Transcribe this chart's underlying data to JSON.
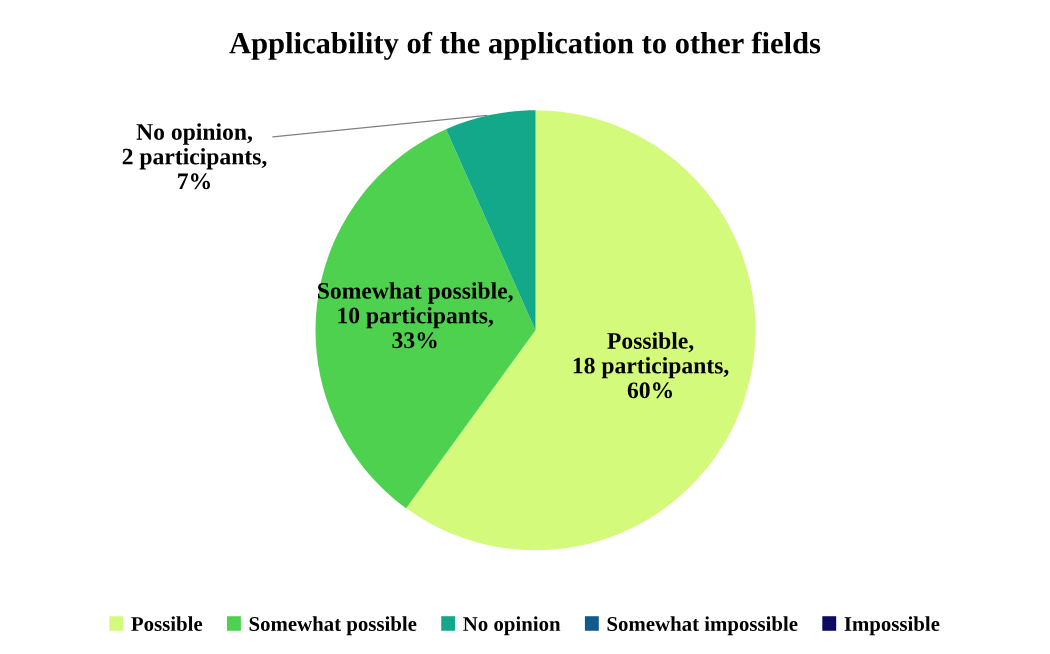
{
  "chart_data": {
    "type": "pie",
    "title": "Applicability of the application to other fields",
    "categories": [
      "Possible",
      "Somewhat possible",
      "No opinion",
      "Somewhat impossible",
      "Impossible"
    ],
    "values": [
      18,
      10,
      2,
      0,
      0
    ],
    "value_labels": [
      "Possible,\n18 participants,\n60%",
      "Somewhat possible,\n10 participants,\n33%",
      "No opinion,\n2 participants,\n7%",
      null,
      null
    ],
    "colors": [
      "#d4fa7c",
      "#4fd150",
      "#13a88a",
      "#135a8a",
      "#0a0a5e"
    ],
    "legend": "bottom"
  }
}
